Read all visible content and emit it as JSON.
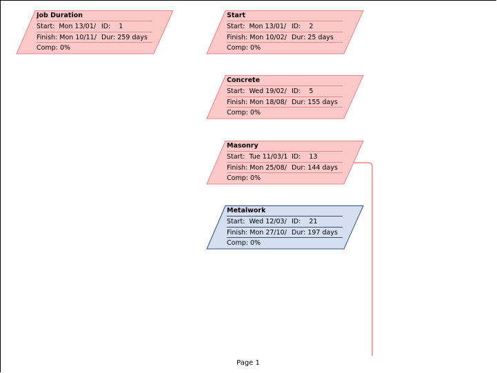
{
  "colors": {
    "critical_fill": "#fdc8c8",
    "critical_stroke": "#e6858a",
    "normal_fill": "#d5dff0",
    "normal_stroke": "#2f4f70",
    "connector": "#f08080"
  },
  "nodes": [
    {
      "title": "Job Duration",
      "start_label": "Start:",
      "start_date": "Mon 13/01/",
      "id_label": "ID:",
      "id": "1",
      "finish_label": "Finish:",
      "finish_date": "Mon 10/11/",
      "dur_label": "Dur:",
      "duration": "259 days",
      "comp_label": "Comp:",
      "comp": "0%",
      "critical": true
    },
    {
      "title": "Start",
      "start_label": "Start:",
      "start_date": "Mon 13/01/",
      "id_label": "ID:",
      "id": "2",
      "finish_label": "Finish:",
      "finish_date": "Mon 10/02/",
      "dur_label": "Dur:",
      "duration": "25 days",
      "comp_label": "Comp:",
      "comp": "0%",
      "critical": true
    },
    {
      "title": "Concrete",
      "start_label": "Start:",
      "start_date": "Wed 19/02/",
      "id_label": "ID:",
      "id": "5",
      "finish_label": "Finish:",
      "finish_date": "Mon 18/08/",
      "dur_label": "Dur:",
      "duration": "155 days",
      "comp_label": "Comp:",
      "comp": "0%",
      "critical": true
    },
    {
      "title": "Masonry",
      "start_label": "Start:",
      "start_date": "Tue 11/03/1",
      "id_label": "ID:",
      "id": "13",
      "finish_label": "Finish:",
      "finish_date": "Mon 25/08/",
      "dur_label": "Dur:",
      "duration": "144 days",
      "comp_label": "Comp:",
      "comp": "0%",
      "critical": true
    },
    {
      "title": "Metalwork",
      "start_label": "Start:",
      "start_date": "Wed 12/03/",
      "id_label": "ID:",
      "id": "21",
      "finish_label": "Finish:",
      "finish_date": "Mon 27/10/",
      "dur_label": "Dur:",
      "duration": "197 days",
      "comp_label": "Comp:",
      "comp": "0%",
      "critical": false
    }
  ],
  "footer": {
    "page_label": "Page 1"
  }
}
